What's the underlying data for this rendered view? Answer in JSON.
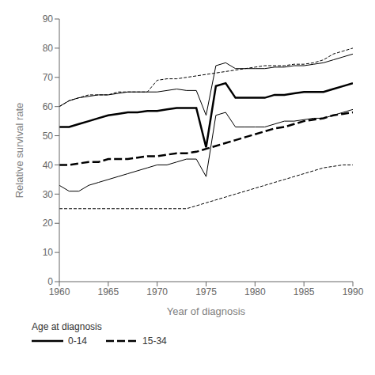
{
  "chart_data": {
    "type": "line",
    "xlabel": "Year of diagnosis",
    "ylabel": "Relative survival rate",
    "legend_title": "Age at diagnosis",
    "legend": "bottom",
    "grid": false,
    "xlim": [
      1960,
      1990
    ],
    "ylim": [
      0,
      90
    ],
    "xticks": [
      1960,
      1965,
      1970,
      1975,
      1980,
      1985,
      1990
    ],
    "yticks": [
      0,
      10,
      20,
      30,
      40,
      50,
      60,
      70,
      80,
      90
    ],
    "x": [
      1960,
      1961,
      1962,
      1963,
      1964,
      1965,
      1966,
      1967,
      1968,
      1969,
      1970,
      1971,
      1972,
      1973,
      1974,
      1975,
      1976,
      1977,
      1978,
      1979,
      1980,
      1981,
      1982,
      1983,
      1984,
      1985,
      1986,
      1987,
      1988,
      1989,
      1990
    ],
    "series": [
      {
        "color": "#000000",
        "line_style": "solid",
        "values": [
          60,
          62,
          63,
          63.5,
          64,
          64,
          64.5,
          65,
          65,
          65,
          65,
          65.5,
          66,
          65.5,
          65.5,
          57,
          74,
          75,
          73,
          73,
          73,
          73,
          73.5,
          73.5,
          74,
          74,
          74.5,
          75,
          76,
          77,
          78
        ]
      },
      {
        "color": "#000000",
        "line_style": "solid",
        "values": [
          33,
          31,
          31,
          33,
          34,
          35,
          36,
          37,
          38,
          39,
          40,
          40,
          41,
          42,
          42,
          36,
          57,
          58,
          53,
          53,
          53,
          53,
          54,
          55,
          55,
          55.5,
          56,
          56,
          57,
          58,
          59
        ]
      },
      {
        "color": "#000000",
        "line_style": "dashed",
        "values": [
          60,
          62,
          63,
          64,
          64,
          64,
          65,
          65,
          65,
          65,
          69,
          69.5,
          69.5,
          70,
          70.5,
          71,
          71.5,
          72,
          72.5,
          73,
          73.5,
          74,
          74,
          74,
          74.5,
          74.5,
          75,
          76,
          78,
          79,
          80
        ]
      },
      {
        "color": "#000000",
        "line_style": "dashed",
        "values": [
          25,
          25,
          25,
          25,
          25,
          25,
          25,
          25,
          25,
          25,
          25,
          25,
          25,
          25,
          26,
          27,
          28,
          29,
          30,
          31,
          32,
          33,
          34,
          35,
          36,
          37,
          38,
          39,
          39.5,
          40,
          40
        ]
      },
      {
        "name": "0-14",
        "color": "#000000",
        "line_style": "solid",
        "values": [
          53,
          53,
          54,
          55,
          56,
          57,
          57.5,
          58,
          58,
          58.5,
          58.5,
          59,
          59.5,
          59.5,
          59.5,
          46,
          67,
          68,
          63,
          63,
          63,
          63,
          64,
          64,
          64.5,
          65,
          65,
          65,
          66,
          67,
          68
        ]
      },
      {
        "name": "15-34",
        "color": "#000000",
        "line_style": "dashed",
        "values": [
          40,
          40,
          40.5,
          41,
          41,
          42,
          42,
          42,
          42.5,
          43,
          43,
          43.5,
          44,
          44,
          44.5,
          45.5,
          46.5,
          47.5,
          48.5,
          49.5,
          50.5,
          51.5,
          52.5,
          53,
          54,
          55,
          55.5,
          56,
          57,
          57.5,
          58
        ]
      }
    ]
  }
}
